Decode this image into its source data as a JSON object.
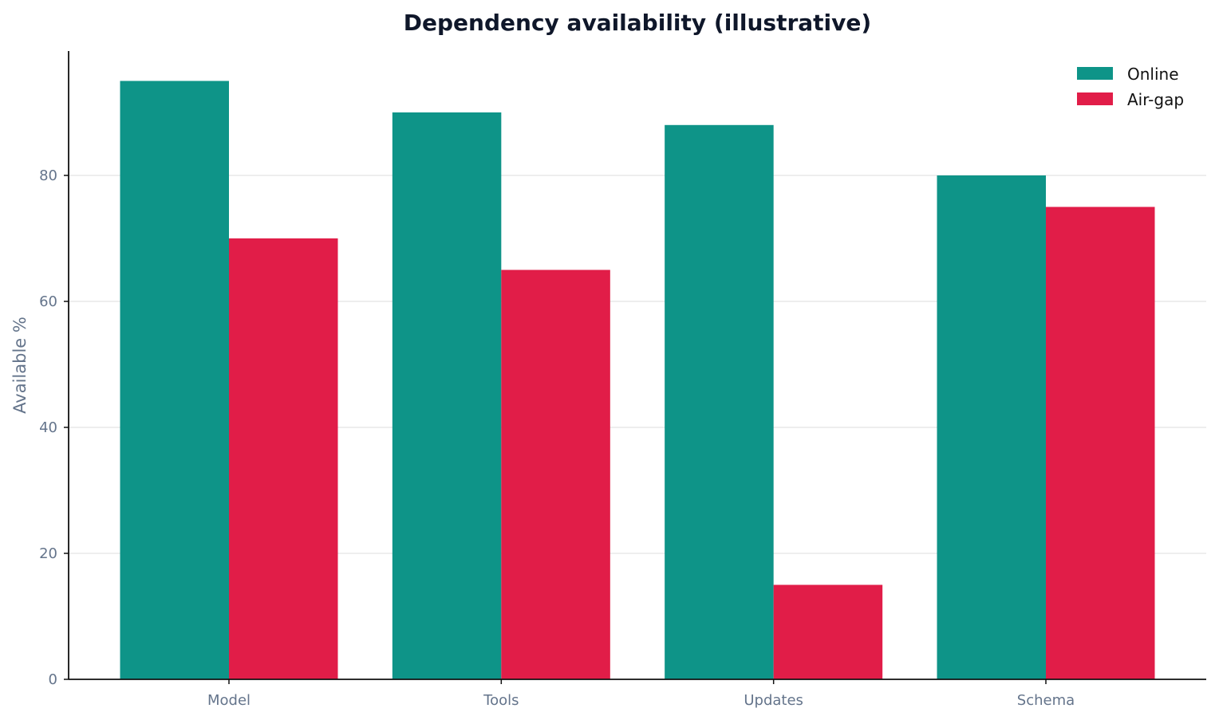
{
  "chart_data": {
    "type": "bar",
    "title": "Dependency availability (illustrative)",
    "xlabel": "",
    "ylabel": "Available %",
    "categories": [
      "Model",
      "Tools",
      "Updates",
      "Schema"
    ],
    "series": [
      {
        "name": "Online",
        "values": [
          95,
          90,
          88,
          80
        ],
        "color": "#0e9488"
      },
      {
        "name": "Air-gap",
        "values": [
          70,
          65,
          15,
          75
        ],
        "color": "#e11d48"
      }
    ],
    "ylim": [
      0,
      100
    ],
    "yticks": [
      0,
      20,
      40,
      60,
      80
    ],
    "grid": "horizontal",
    "legend_position": "top-right"
  }
}
